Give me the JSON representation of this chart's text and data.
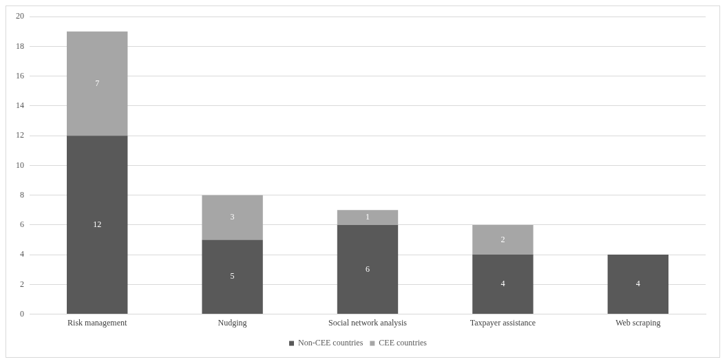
{
  "chart_data": {
    "type": "bar",
    "stacked": true,
    "categories": [
      "Risk management",
      "Nudging",
      "Social network analysis",
      "Taxpayer assistance",
      "Web scraping"
    ],
    "series": [
      {
        "name": "Non-CEE countries",
        "color": "#595959",
        "values": [
          12,
          5,
          6,
          4,
          4
        ]
      },
      {
        "name": "CEE countries",
        "color": "#a6a6a6",
        "values": [
          7,
          3,
          1,
          2,
          null
        ]
      }
    ],
    "ylim": [
      0,
      20
    ],
    "yticks": [
      0,
      2,
      4,
      6,
      8,
      10,
      12,
      14,
      16,
      18,
      20
    ],
    "grid": "y",
    "legend": "bottom",
    "data_labels": true
  }
}
